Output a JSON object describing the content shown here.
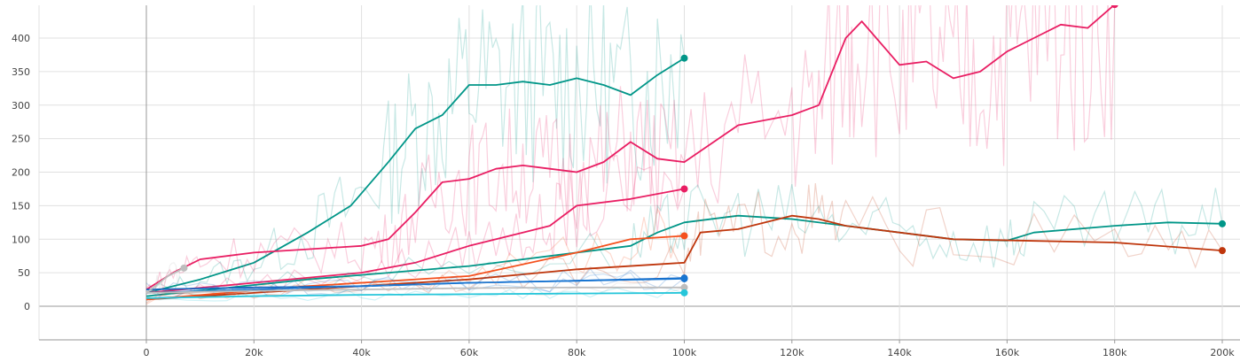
{
  "chart_data": {
    "type": "line",
    "title": "",
    "xlabel": "",
    "ylabel": "",
    "xlim": [
      -20000,
      202000
    ],
    "ylim": [
      -50,
      450
    ],
    "grid": true,
    "x_ticks": [
      0,
      20000,
      40000,
      60000,
      80000,
      100000,
      120000,
      140000,
      160000,
      180000,
      200000
    ],
    "x_tick_labels": [
      "0",
      "20k",
      "40k",
      "60k",
      "80k",
      "100k",
      "120k",
      "140k",
      "160k",
      "180k",
      "200k"
    ],
    "y_ticks": [
      0,
      50,
      100,
      150,
      200,
      250,
      300,
      350,
      400
    ],
    "y_tick_labels": [
      "0",
      "50",
      "100",
      "150",
      "200",
      "250",
      "300",
      "350",
      "400"
    ],
    "series": [
      {
        "color": "#009688",
        "x": [
          0,
          10000,
          20000,
          30000,
          38000,
          45000,
          50000,
          55000,
          60000,
          65000,
          70000,
          75000,
          80000,
          85000,
          90000,
          95000,
          100000
        ],
        "y": [
          20,
          40,
          65,
          110,
          150,
          215,
          265,
          285,
          330,
          330,
          335,
          330,
          340,
          330,
          315,
          345,
          370
        ]
      },
      {
        "color": "#e91e63",
        "x": [
          0,
          5000,
          10000,
          20000,
          30000,
          40000,
          45000,
          50000,
          55000,
          60000,
          65000,
          70000,
          75000,
          80000,
          85000,
          90000,
          95000,
          100000,
          110000,
          120000,
          125000,
          130000,
          133000,
          140000,
          145000,
          150000,
          155000,
          160000,
          165000,
          170000,
          175000,
          180000
        ],
        "y": [
          25,
          50,
          70,
          80,
          85,
          90,
          100,
          140,
          185,
          190,
          205,
          210,
          205,
          200,
          215,
          245,
          220,
          215,
          270,
          285,
          300,
          400,
          425,
          360,
          365,
          340,
          350,
          380,
          400,
          420,
          415,
          450
        ]
      },
      {
        "color": "#e91e63",
        "x": [
          0,
          20000,
          40000,
          50000,
          60000,
          70000,
          75000,
          80000,
          90000,
          100000
        ],
        "y": [
          20,
          35,
          50,
          65,
          90,
          110,
          120,
          150,
          160,
          175
        ]
      },
      {
        "color": "#009688",
        "x": [
          0,
          30000,
          60000,
          90000,
          95000,
          100000,
          110000,
          120000,
          130000,
          140000,
          150000,
          160000,
          165000,
          180000,
          190000,
          200000
        ],
        "y": [
          15,
          40,
          60,
          90,
          110,
          125,
          135,
          130,
          120,
          110,
          100,
          98,
          110,
          120,
          125,
          123
        ]
      },
      {
        "color": "#bf360c",
        "x": [
          0,
          20000,
          40000,
          60000,
          80000,
          100000,
          103000,
          110000,
          120000,
          125000,
          130000,
          150000,
          180000,
          200000
        ],
        "y": [
          10,
          20,
          30,
          40,
          55,
          65,
          110,
          115,
          135,
          130,
          120,
          100,
          95,
          83
        ]
      },
      {
        "color": "#f4511e",
        "x": [
          0,
          30000,
          60000,
          80000,
          90000,
          100000
        ],
        "y": [
          10,
          30,
          45,
          80,
          100,
          105
        ]
      },
      {
        "color": "#1565c0",
        "x": [
          0,
          20000,
          40000,
          60000,
          80000,
          100000
        ],
        "y": [
          25,
          28,
          30,
          35,
          38,
          42
        ]
      },
      {
        "color": "#1976d2",
        "x": [
          0,
          20000,
          40000,
          60000,
          80000,
          100000
        ],
        "y": [
          20,
          25,
          30,
          35,
          38,
          41
        ]
      },
      {
        "color": "#bdbdbd",
        "x": [
          0,
          20000,
          40000,
          60000,
          80000,
          100000
        ],
        "y": [
          20,
          23,
          25,
          27,
          28,
          28
        ]
      },
      {
        "color": "#26c6da",
        "x": [
          0,
          20000,
          40000,
          60000,
          80000,
          100000
        ],
        "y": [
          12,
          15,
          17,
          18,
          19,
          20
        ]
      },
      {
        "color": "#bdbdbd",
        "x": [
          0,
          4000,
          7000
        ],
        "y": [
          20,
          45,
          57
        ]
      }
    ]
  }
}
